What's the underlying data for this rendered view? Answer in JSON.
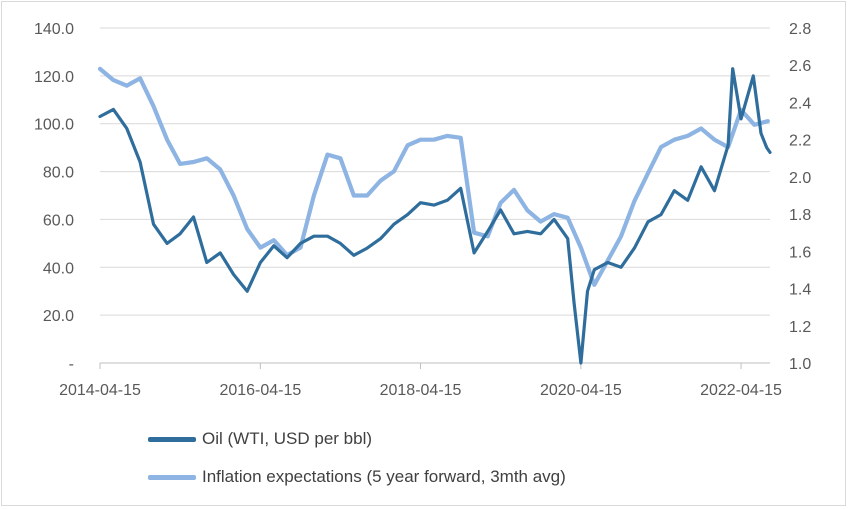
{
  "colors": {
    "oil": "#2f6e9c",
    "inflation": "#8db4e2",
    "grid": "#d9d9d9",
    "text": "#595959"
  },
  "chart_data": {
    "type": "line",
    "title": "",
    "xlabel": "",
    "ylabel": "",
    "x_ticks": [
      "2014-04-15",
      "2016-04-15",
      "2018-04-15",
      "2020-04-15",
      "2022-04-15"
    ],
    "x_range": [
      "2014-04-15",
      "2022-08-25"
    ],
    "y_left": {
      "ticks": [
        "-",
        "20.0",
        "40.0",
        "60.0",
        "80.0",
        "100.0",
        "120.0",
        "140.0"
      ],
      "lim": [
        0,
        140
      ]
    },
    "y_right": {
      "ticks": [
        "1.0",
        "1.2",
        "1.4",
        "1.6",
        "1.8",
        "2.0",
        "2.2",
        "2.4",
        "2.6",
        "2.8"
      ],
      "lim": [
        1.0,
        2.8
      ]
    },
    "grid": "horizontal",
    "legend_position": "bottom",
    "series": [
      {
        "name": "Oil (WTI, USD per bbl)",
        "axis": "left",
        "points": [
          [
            "2014-04-15",
            103
          ],
          [
            "2014-06-15",
            106
          ],
          [
            "2014-08-15",
            98
          ],
          [
            "2014-10-15",
            84
          ],
          [
            "2014-12-15",
            58
          ],
          [
            "2015-02-15",
            50
          ],
          [
            "2015-04-15",
            54
          ],
          [
            "2015-06-15",
            61
          ],
          [
            "2015-08-15",
            42
          ],
          [
            "2015-10-15",
            46
          ],
          [
            "2015-12-15",
            37
          ],
          [
            "2016-02-15",
            30
          ],
          [
            "2016-04-15",
            42
          ],
          [
            "2016-06-15",
            49
          ],
          [
            "2016-08-15",
            44
          ],
          [
            "2016-10-15",
            50
          ],
          [
            "2016-12-15",
            53
          ],
          [
            "2017-02-15",
            53
          ],
          [
            "2017-04-15",
            50
          ],
          [
            "2017-06-15",
            45
          ],
          [
            "2017-08-15",
            48
          ],
          [
            "2017-10-15",
            52
          ],
          [
            "2017-12-15",
            58
          ],
          [
            "2018-02-15",
            62
          ],
          [
            "2018-04-15",
            67
          ],
          [
            "2018-06-15",
            66
          ],
          [
            "2018-08-15",
            68
          ],
          [
            "2018-10-15",
            73
          ],
          [
            "2018-12-15",
            46
          ],
          [
            "2019-02-15",
            55
          ],
          [
            "2019-04-15",
            64
          ],
          [
            "2019-06-15",
            54
          ],
          [
            "2019-08-15",
            55
          ],
          [
            "2019-10-15",
            54
          ],
          [
            "2019-12-15",
            60
          ],
          [
            "2020-02-15",
            52
          ],
          [
            "2020-03-15",
            25
          ],
          [
            "2020-04-15",
            0
          ],
          [
            "2020-05-15",
            30
          ],
          [
            "2020-06-15",
            39
          ],
          [
            "2020-08-15",
            42
          ],
          [
            "2020-10-15",
            40
          ],
          [
            "2020-12-15",
            48
          ],
          [
            "2021-02-15",
            59
          ],
          [
            "2021-04-15",
            62
          ],
          [
            "2021-06-15",
            72
          ],
          [
            "2021-08-15",
            68
          ],
          [
            "2021-10-15",
            82
          ],
          [
            "2021-12-15",
            72
          ],
          [
            "2022-02-15",
            91
          ],
          [
            "2022-03-08",
            123
          ],
          [
            "2022-04-15",
            102
          ],
          [
            "2022-06-10",
            120
          ],
          [
            "2022-07-15",
            96
          ],
          [
            "2022-08-10",
            90
          ],
          [
            "2022-08-25",
            88
          ]
        ]
      },
      {
        "name": "Inflation expectations (5 year forward, 3mth avg)",
        "axis": "right",
        "points": [
          [
            "2014-04-15",
            2.58
          ],
          [
            "2014-06-15",
            2.52
          ],
          [
            "2014-08-15",
            2.49
          ],
          [
            "2014-10-15",
            2.53
          ],
          [
            "2014-12-15",
            2.38
          ],
          [
            "2015-02-15",
            2.2
          ],
          [
            "2015-04-15",
            2.07
          ],
          [
            "2015-06-15",
            2.08
          ],
          [
            "2015-08-15",
            2.1
          ],
          [
            "2015-10-15",
            2.04
          ],
          [
            "2015-12-15",
            1.9
          ],
          [
            "2016-02-15",
            1.72
          ],
          [
            "2016-04-15",
            1.62
          ],
          [
            "2016-06-15",
            1.66
          ],
          [
            "2016-08-15",
            1.58
          ],
          [
            "2016-10-15",
            1.62
          ],
          [
            "2016-12-15",
            1.9
          ],
          [
            "2017-02-15",
            2.12
          ],
          [
            "2017-04-15",
            2.1
          ],
          [
            "2017-06-15",
            1.9
          ],
          [
            "2017-08-15",
            1.9
          ],
          [
            "2017-10-15",
            1.98
          ],
          [
            "2017-12-15",
            2.03
          ],
          [
            "2018-02-15",
            2.17
          ],
          [
            "2018-04-15",
            2.2
          ],
          [
            "2018-06-15",
            2.2
          ],
          [
            "2018-08-15",
            2.22
          ],
          [
            "2018-10-15",
            2.21
          ],
          [
            "2018-12-15",
            1.7
          ],
          [
            "2019-02-15",
            1.68
          ],
          [
            "2019-04-15",
            1.86
          ],
          [
            "2019-06-15",
            1.93
          ],
          [
            "2019-08-15",
            1.82
          ],
          [
            "2019-10-15",
            1.76
          ],
          [
            "2019-12-15",
            1.8
          ],
          [
            "2020-02-15",
            1.78
          ],
          [
            "2020-04-15",
            1.62
          ],
          [
            "2020-06-15",
            1.42
          ],
          [
            "2020-08-15",
            1.55
          ],
          [
            "2020-10-15",
            1.68
          ],
          [
            "2020-12-15",
            1.87
          ],
          [
            "2021-02-15",
            2.02
          ],
          [
            "2021-04-15",
            2.16
          ],
          [
            "2021-06-15",
            2.2
          ],
          [
            "2021-08-15",
            2.22
          ],
          [
            "2021-10-15",
            2.26
          ],
          [
            "2021-12-15",
            2.2
          ],
          [
            "2022-02-15",
            2.16
          ],
          [
            "2022-04-15",
            2.36
          ],
          [
            "2022-06-15",
            2.28
          ],
          [
            "2022-08-15",
            2.3
          ]
        ]
      }
    ]
  }
}
